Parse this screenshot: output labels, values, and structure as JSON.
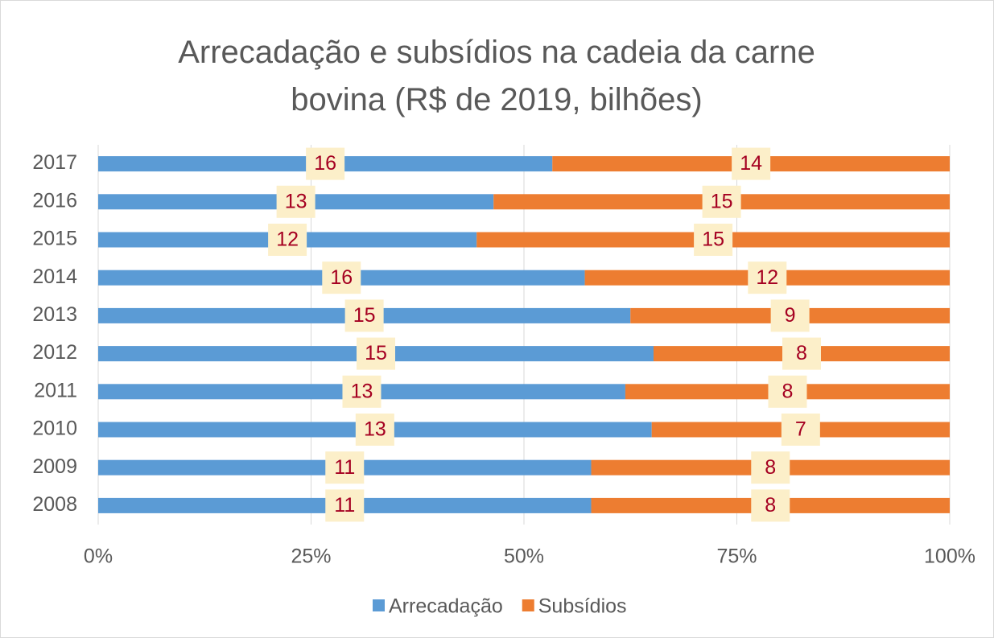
{
  "chart_data": {
    "type": "bar",
    "orientation": "horizontal",
    "stacking": "percent",
    "title": "Arrecadação e subsídios na cadeia da carne bovina (R$ de 2019, bilhões)",
    "categories": [
      "2008",
      "2009",
      "2010",
      "2011",
      "2012",
      "2013",
      "2014",
      "2015",
      "2016",
      "2017"
    ],
    "series": [
      {
        "name": "Arrecadação",
        "color": "#5b9bd5",
        "values": [
          11,
          11,
          13,
          13,
          15,
          15,
          16,
          12,
          13,
          16
        ]
      },
      {
        "name": "Subsídios",
        "color": "#ed7d31",
        "values": [
          8,
          8,
          7,
          8,
          8,
          9,
          12,
          15,
          15,
          14
        ]
      }
    ],
    "xlim": [
      0,
      100
    ],
    "xticks": [
      {
        "value": 0,
        "label": "0%"
      },
      {
        "value": 25,
        "label": "25%"
      },
      {
        "value": 50,
        "label": "50%"
      },
      {
        "value": 75,
        "label": "75%"
      },
      {
        "value": 100,
        "label": "100%"
      }
    ],
    "grid": true,
    "legend": "bottom"
  }
}
